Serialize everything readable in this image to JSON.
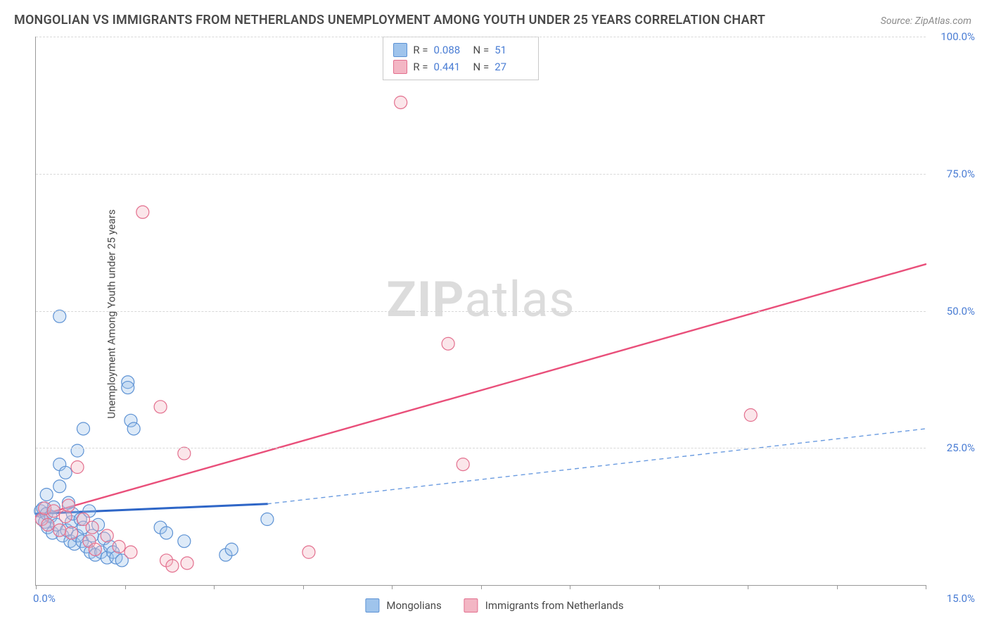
{
  "title": "MONGOLIAN VS IMMIGRANTS FROM NETHERLANDS UNEMPLOYMENT AMONG YOUTH UNDER 25 YEARS CORRELATION CHART",
  "source": "Source: ZipAtlas.com",
  "ylabel": "Unemployment Among Youth under 25 years",
  "watermark_a": "ZIP",
  "watermark_b": "atlas",
  "chart": {
    "type": "scatter",
    "background_color": "#ffffff",
    "grid_color": "#d8d8d8",
    "axis_color": "#999999",
    "tick_color": "#4a7dd4",
    "xlim": [
      0,
      15
    ],
    "ylim": [
      0,
      100
    ],
    "x_tick_positions": [
      0.0,
      1.5,
      3.0,
      4.5,
      6.0,
      7.5,
      9.0,
      10.5,
      12.0,
      13.5,
      15.0
    ],
    "x_tick_labels_shown": {
      "first": "0.0%",
      "last": "15.0%"
    },
    "y_gridlines": [
      25,
      50,
      75,
      100
    ],
    "y_tick_labels": [
      "25.0%",
      "50.0%",
      "75.0%",
      "100.0%"
    ],
    "marker_radius": 9,
    "marker_fill_opacity": 0.35,
    "marker_stroke_width": 1.2,
    "series": [
      {
        "name": "Mongolians",
        "color_fill": "#9fc4ec",
        "color_stroke": "#5d92d4",
        "R": "0.088",
        "N": "51",
        "trend": {
          "solid": {
            "x1": 0.0,
            "y1": 13.0,
            "x2": 3.9,
            "y2": 14.8,
            "width": 3,
            "color": "#2e66c7"
          },
          "dashed": {
            "x1": 3.9,
            "y1": 14.8,
            "x2": 15.0,
            "y2": 28.5,
            "width": 1.4,
            "color": "#6a9be0",
            "dash": "6,5"
          }
        },
        "points": [
          [
            0.08,
            13.5
          ],
          [
            0.1,
            12.0
          ],
          [
            0.12,
            14.0
          ],
          [
            0.15,
            11.5
          ],
          [
            0.18,
            16.5
          ],
          [
            0.18,
            13.0
          ],
          [
            0.2,
            10.5
          ],
          [
            0.25,
            12.5
          ],
          [
            0.28,
            9.5
          ],
          [
            0.3,
            14.2
          ],
          [
            0.35,
            11.0
          ],
          [
            0.4,
            49.0
          ],
          [
            0.4,
            22.0
          ],
          [
            0.4,
            18.0
          ],
          [
            0.45,
            9.0
          ],
          [
            0.5,
            20.5
          ],
          [
            0.52,
            10.0
          ],
          [
            0.55,
            15.0
          ],
          [
            0.58,
            8.0
          ],
          [
            0.6,
            11.5
          ],
          [
            0.62,
            13.0
          ],
          [
            0.65,
            7.5
          ],
          [
            0.7,
            24.5
          ],
          [
            0.7,
            9.0
          ],
          [
            0.75,
            12.0
          ],
          [
            0.78,
            8.0
          ],
          [
            0.8,
            28.5
          ],
          [
            0.8,
            10.5
          ],
          [
            0.85,
            7.0
          ],
          [
            0.9,
            13.5
          ],
          [
            0.92,
            6.0
          ],
          [
            0.95,
            9.0
          ],
          [
            1.0,
            5.5
          ],
          [
            1.05,
            11.0
          ],
          [
            1.1,
            6.0
          ],
          [
            1.15,
            8.5
          ],
          [
            1.2,
            5.0
          ],
          [
            1.25,
            7.0
          ],
          [
            1.3,
            6.0
          ],
          [
            1.35,
            5.0
          ],
          [
            1.45,
            4.5
          ],
          [
            1.55,
            37.0
          ],
          [
            1.55,
            36.0
          ],
          [
            1.6,
            30.0
          ],
          [
            1.65,
            28.5
          ],
          [
            2.1,
            10.5
          ],
          [
            2.2,
            9.5
          ],
          [
            2.5,
            8.0
          ],
          [
            3.2,
            5.5
          ],
          [
            3.3,
            6.5
          ],
          [
            3.9,
            12.0
          ]
        ]
      },
      {
        "name": "Immigrants from Netherlands",
        "color_fill": "#f3b6c4",
        "color_stroke": "#e36f8e",
        "R": "0.441",
        "N": "27",
        "trend": {
          "solid": {
            "x1": 0.0,
            "y1": 12.5,
            "x2": 15.0,
            "y2": 58.5,
            "width": 2.4,
            "color": "#e94f7a"
          }
        },
        "points": [
          [
            0.1,
            12.0
          ],
          [
            0.15,
            14.0
          ],
          [
            0.2,
            11.0
          ],
          [
            0.3,
            13.5
          ],
          [
            0.4,
            10.0
          ],
          [
            0.5,
            12.5
          ],
          [
            0.55,
            14.5
          ],
          [
            0.6,
            9.5
          ],
          [
            0.7,
            21.5
          ],
          [
            0.8,
            12.0
          ],
          [
            0.9,
            8.0
          ],
          [
            0.95,
            10.5
          ],
          [
            1.0,
            6.5
          ],
          [
            1.2,
            9.0
          ],
          [
            1.4,
            7.0
          ],
          [
            1.6,
            6.0
          ],
          [
            1.8,
            68.0
          ],
          [
            2.1,
            32.5
          ],
          [
            2.2,
            4.5
          ],
          [
            2.3,
            3.5
          ],
          [
            2.5,
            24.0
          ],
          [
            2.55,
            4.0
          ],
          [
            4.6,
            6.0
          ],
          [
            6.15,
            88.0
          ],
          [
            6.95,
            44.0
          ],
          [
            7.2,
            22.0
          ],
          [
            12.05,
            31.0
          ]
        ]
      }
    ]
  },
  "legend_bottom": {
    "items": [
      {
        "label": "Mongolians",
        "fill": "#9fc4ec",
        "stroke": "#5d92d4"
      },
      {
        "label": "Immigrants from Netherlands",
        "fill": "#f3b6c4",
        "stroke": "#e36f8e"
      }
    ]
  }
}
